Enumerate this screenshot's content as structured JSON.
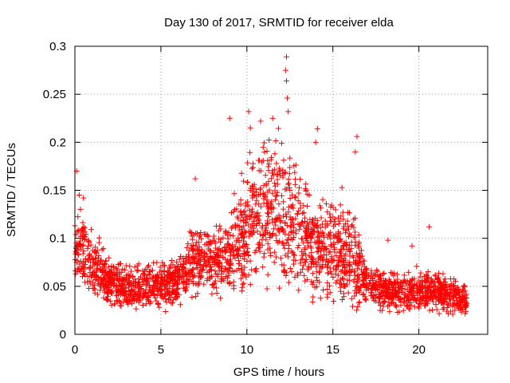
{
  "chart_data": {
    "type": "scatter",
    "title": "Day 130 of 2017, SRMTID for receiver elda",
    "xlabel": "GPS time / hours",
    "ylabel": "SRMTID / TECUs",
    "xlim": [
      0,
      24
    ],
    "ylim": [
      0,
      0.3
    ],
    "x_ticks": [
      0,
      5,
      10,
      15,
      20
    ],
    "x_tick_labels": [
      "0",
      "5",
      "10",
      "15",
      "20"
    ],
    "y_ticks": [
      0,
      0.05,
      0.1,
      0.15,
      0.2,
      0.25,
      0.3
    ],
    "y_tick_labels": [
      "0",
      "0.05",
      "0.1",
      "0.15",
      "0.2",
      "0.25",
      "0.3"
    ],
    "grid": true,
    "marker": "+",
    "series": [
      {
        "name": "SRMTID",
        "color": "#ff0000",
        "x_range": [
          0,
          22.8
        ],
        "profile": [
          {
            "x": 0.0,
            "y": 0.085
          },
          {
            "x": 0.5,
            "y": 0.085
          },
          {
            "x": 1.0,
            "y": 0.075
          },
          {
            "x": 1.5,
            "y": 0.065
          },
          {
            "x": 2.0,
            "y": 0.055
          },
          {
            "x": 3.0,
            "y": 0.048
          },
          {
            "x": 4.0,
            "y": 0.05
          },
          {
            "x": 5.0,
            "y": 0.05
          },
          {
            "x": 6.0,
            "y": 0.058
          },
          {
            "x": 7.0,
            "y": 0.08
          },
          {
            "x": 8.0,
            "y": 0.072
          },
          {
            "x": 9.0,
            "y": 0.085
          },
          {
            "x": 10.0,
            "y": 0.11
          },
          {
            "x": 11.0,
            "y": 0.13
          },
          {
            "x": 12.0,
            "y": 0.13
          },
          {
            "x": 13.0,
            "y": 0.11
          },
          {
            "x": 14.0,
            "y": 0.09
          },
          {
            "x": 15.0,
            "y": 0.09
          },
          {
            "x": 16.0,
            "y": 0.085
          },
          {
            "x": 17.0,
            "y": 0.05
          },
          {
            "x": 18.0,
            "y": 0.045
          },
          {
            "x": 19.0,
            "y": 0.045
          },
          {
            "x": 20.0,
            "y": 0.045
          },
          {
            "x": 21.0,
            "y": 0.045
          },
          {
            "x": 22.0,
            "y": 0.04
          },
          {
            "x": 22.8,
            "y": 0.035
          }
        ],
        "outliers": [
          {
            "x": 0.1,
            "y": 0.17
          },
          {
            "x": 0.25,
            "y": 0.145
          },
          {
            "x": 0.5,
            "y": 0.142
          },
          {
            "x": 7.0,
            "y": 0.162
          },
          {
            "x": 9.0,
            "y": 0.225
          },
          {
            "x": 10.1,
            "y": 0.232
          },
          {
            "x": 10.2,
            "y": 0.215
          },
          {
            "x": 10.8,
            "y": 0.222
          },
          {
            "x": 11.5,
            "y": 0.225
          },
          {
            "x": 12.3,
            "y": 0.289
          },
          {
            "x": 12.25,
            "y": 0.275
          },
          {
            "x": 12.3,
            "y": 0.264
          },
          {
            "x": 12.35,
            "y": 0.246
          },
          {
            "x": 12.4,
            "y": 0.232
          },
          {
            "x": 14.1,
            "y": 0.214
          },
          {
            "x": 14.0,
            "y": 0.2
          },
          {
            "x": 16.4,
            "y": 0.206
          },
          {
            "x": 16.3,
            "y": 0.19
          },
          {
            "x": 20.6,
            "y": 0.112
          },
          {
            "x": 18.2,
            "y": 0.098
          },
          {
            "x": 19.6,
            "y": 0.092
          }
        ]
      }
    ]
  }
}
